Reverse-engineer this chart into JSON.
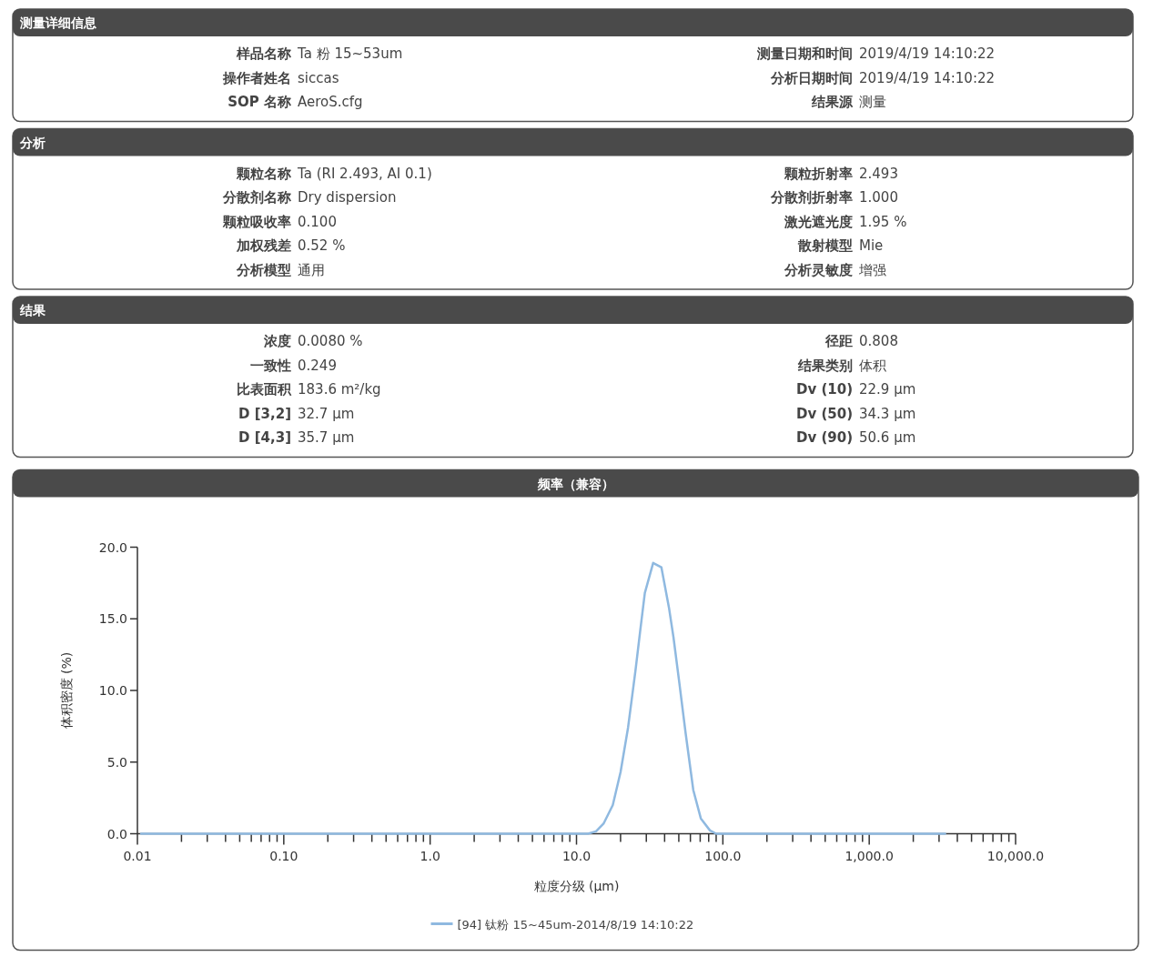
{
  "chart_data": [
    {
      "type": "other",
      "title": "测量详细信息",
      "annotations": [
        "样品名称",
        "Ta 粉  15~53um",
        "操作者姓名",
        "siccas",
        "SOP 名称",
        "AeroS.cfg",
        "测量日期和时间",
        "2019/4/19 14:10:22",
        "分析日期时间",
        "2019/4/19 14:10:22",
        "结果源",
        "测量"
      ]
    },
    {
      "type": "other",
      "title": "分析",
      "annotations": [
        "颗粒名称",
        "Ta (RI 2.493, AI 0.1)",
        "分散剂名称",
        "Dry dispersion",
        "颗粒吸收率",
        "0.100",
        "加权残差",
        "0.52 %",
        "分析模型",
        "通用",
        "颗粒折射率",
        "2.493",
        "分散剂折射率",
        "1.000",
        "激光遮光度",
        "1.95 %",
        "散射模型",
        "Mie",
        "分析灵敏度",
        "增强"
      ]
    },
    {
      "type": "other",
      "title": "结果",
      "annotations": [
        "浓度",
        "0.0080 %",
        "一致性",
        "0.249",
        "比表面积",
        "183.6 m²/kg",
        "D [3,2]",
        "32.7 μm",
        "D [4,3]",
        "35.7 μm",
        "径距",
        "0.808",
        "结果类别",
        "体积",
        "Dv (10)",
        "22.9 μm",
        "Dv (50)",
        "34.3 μm",
        "Dv (90)",
        "50.6 μm"
      ]
    },
    {
      "type": "line",
      "title": "频率（兼容）",
      "xlabel": "粒度分级 (μm)",
      "ylabel": "体积密度 (%)",
      "log": "x",
      "legend": "bottom",
      "marker": "none",
      "line_style": "solid",
      "xlim": [
        0.01,
        10000
      ],
      "ylim": [
        0,
        20
      ],
      "xticks": [
        {
          "value": 0.01,
          "label": "0.01"
        },
        {
          "value": 0.02,
          "label": null
        },
        {
          "value": 0.03,
          "label": null
        },
        {
          "value": 0.04,
          "label": null
        },
        {
          "value": 0.05,
          "label": null
        },
        {
          "value": 0.06,
          "label": null
        },
        {
          "value": 0.07,
          "label": null
        },
        {
          "value": 0.08,
          "label": null
        },
        {
          "value": 0.09,
          "label": null
        },
        {
          "value": 0.1,
          "label": "0.10"
        },
        {
          "value": 0.2,
          "label": null
        },
        {
          "value": 0.3,
          "label": null
        },
        {
          "value": 0.4,
          "label": null
        },
        {
          "value": 0.5,
          "label": null
        },
        {
          "value": 0.6,
          "label": null
        },
        {
          "value": 0.7,
          "label": null
        },
        {
          "value": 0.8,
          "label": null
        },
        {
          "value": 0.9,
          "label": null
        },
        {
          "value": 1,
          "label": "1.0"
        },
        {
          "value": 2,
          "label": null
        },
        {
          "value": 3,
          "label": null
        },
        {
          "value": 4,
          "label": null
        },
        {
          "value": 5,
          "label": null
        },
        {
          "value": 6,
          "label": null
        },
        {
          "value": 7,
          "label": null
        },
        {
          "value": 8,
          "label": null
        },
        {
          "value": 9,
          "label": null
        },
        {
          "value": 10,
          "label": "10.0"
        },
        {
          "value": 20,
          "label": null
        },
        {
          "value": 30,
          "label": null
        },
        {
          "value": 40,
          "label": null
        },
        {
          "value": 50,
          "label": null
        },
        {
          "value": 60,
          "label": null
        },
        {
          "value": 70,
          "label": null
        },
        {
          "value": 80,
          "label": null
        },
        {
          "value": 90,
          "label": null
        },
        {
          "value": 100,
          "label": "100.0"
        },
        {
          "value": 200,
          "label": null
        },
        {
          "value": 300,
          "label": null
        },
        {
          "value": 400,
          "label": null
        },
        {
          "value": 500,
          "label": null
        },
        {
          "value": 600,
          "label": null
        },
        {
          "value": 700,
          "label": null
        },
        {
          "value": 800,
          "label": null
        },
        {
          "value": 900,
          "label": null
        },
        {
          "value": 1000,
          "label": "1,000.0"
        },
        {
          "value": 2000,
          "label": null
        },
        {
          "value": 3000,
          "label": null
        },
        {
          "value": 4000,
          "label": null
        },
        {
          "value": 5000,
          "label": null
        },
        {
          "value": 6000,
          "label": null
        },
        {
          "value": 7000,
          "label": null
        },
        {
          "value": 8000,
          "label": null
        },
        {
          "value": 9000,
          "label": null
        },
        {
          "value": 10000,
          "label": "10,000.0"
        }
      ],
      "yticks": [
        {
          "value": 0,
          "label": "0.0"
        },
        {
          "value": 5,
          "label": "5.0"
        },
        {
          "value": 10,
          "label": "10.0"
        },
        {
          "value": 15,
          "label": "15.0"
        },
        {
          "value": 20,
          "label": "20.0"
        }
      ],
      "series": [
        {
          "name": "[94] 钛粉  15~45um-2014/8/19 14:10:22",
          "color": "#8fb9e0",
          "x": [
            0.0106,
            1,
            10,
            12,
            13.6,
            15.3,
            17.7,
            20.0,
            22.5,
            25.3,
            27.2,
            29.3,
            33.4,
            38.0,
            42.8,
            46.0,
            50.6,
            55.7,
            62.8,
            70.7,
            81.6,
            90,
            3300
          ],
          "values": [
            0,
            0,
            0,
            0,
            0.17,
            0.7,
            2.0,
            4.3,
            7.4,
            11.4,
            14.1,
            16.8,
            18.9,
            18.6,
            15.8,
            13.7,
            10.4,
            7.0,
            3.05,
            1.07,
            0.23,
            0,
            0
          ]
        }
      ]
    }
  ]
}
